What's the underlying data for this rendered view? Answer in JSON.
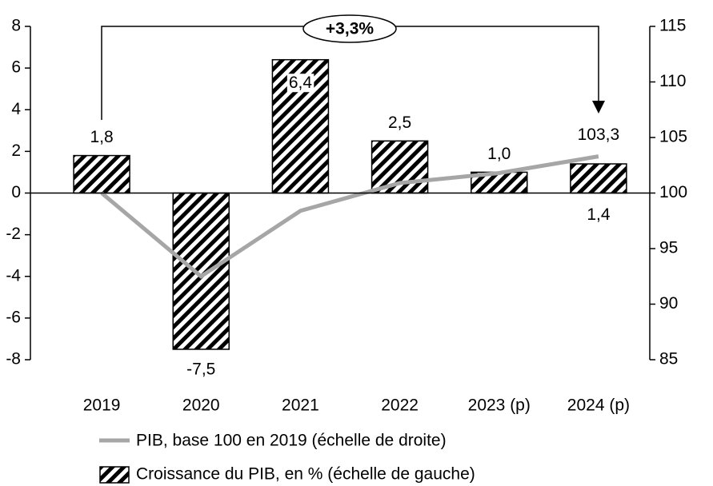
{
  "chart_data": {
    "type": "bar_line",
    "annotation": "+3,3%",
    "categories": [
      "2019",
      "2020",
      "2021",
      "2022",
      "2023 (p)",
      "2024 (p)"
    ],
    "series": [
      {
        "name": "Croissance du PIB, en % (échelle de gauche)",
        "type": "bar",
        "color": "#000000",
        "values": [
          1.8,
          -7.5,
          6.4,
          2.5,
          1.0,
          1.4
        ],
        "value_labels": [
          "1,8",
          "-7,5",
          "6,4",
          "2,5",
          "1,0",
          "1,4"
        ]
      },
      {
        "name": "PIB, base 100 en 2019 (échelle de droite)",
        "type": "line",
        "axis": "y2",
        "color": "#a6a6a6",
        "values": [
          100,
          92.5,
          98.4,
          100.9,
          101.8,
          103.3
        ],
        "value_labels": [
          null,
          null,
          null,
          null,
          null,
          "103,3"
        ]
      }
    ],
    "ylim": [
      -8,
      8
    ],
    "yticks": [
      -8,
      -6,
      -4,
      -2,
      0,
      2,
      4,
      6,
      8
    ],
    "y2lim": [
      85,
      115
    ],
    "y2ticks": [
      85,
      90,
      95,
      100,
      105,
      110,
      115
    ],
    "legend": "bottom"
  }
}
